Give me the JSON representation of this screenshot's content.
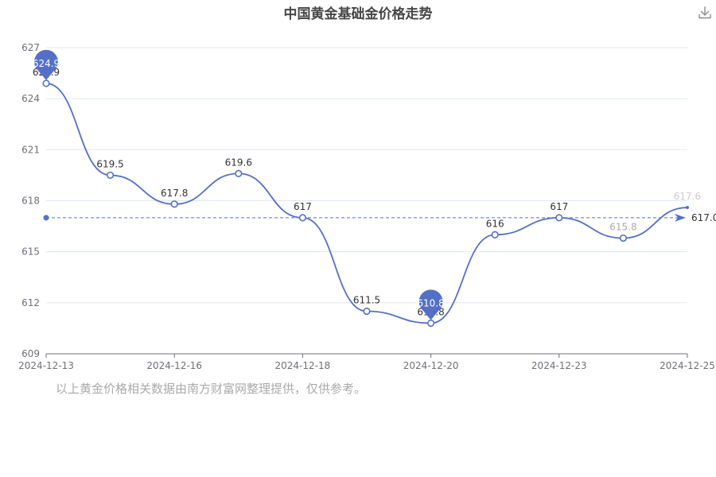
{
  "title": "中国黄金基础金价格走势",
  "footnote": "以上黄金价格相关数据由南方财富网整理提供，仅供参考。",
  "icons": {
    "download": "download-icon"
  },
  "colors": {
    "series": "#5470c6",
    "axis": "#6e7079",
    "grid": "#e0e6f1",
    "title": "#464646",
    "footnote": "#a9a9a9"
  },
  "chart_data": {
    "type": "line",
    "title": "中国黄金基础金价格走势",
    "smooth": true,
    "x_tick_labels": [
      "2024-12-13",
      "2024-12-16",
      "2024-12-18",
      "2024-12-20",
      "2024-12-23",
      "2024-12-25"
    ],
    "y_ticks": [
      609,
      612,
      615,
      618,
      621,
      624,
      627
    ],
    "ylim": [
      609,
      627
    ],
    "grid": "horizontal",
    "series": [
      {
        "values": [
          624.9,
          619.5,
          617.8,
          619.6,
          617.0,
          611.5,
          610.8,
          616.0,
          617.0,
          615.8,
          617.6
        ],
        "labels": [
          "624.9",
          "619.5",
          "617.8",
          "619.6",
          "617",
          "611.5",
          "610.8",
          "616",
          "617",
          "615.8",
          "617.6"
        ]
      }
    ],
    "mark_points": [
      {
        "type": "max",
        "value": 624.9,
        "label": "624.9",
        "index": 0
      },
      {
        "type": "min",
        "value": 610.8,
        "label": "610.8",
        "index": 6
      }
    ],
    "mark_line": {
      "type": "average",
      "value": 617.0,
      "label": "617.0"
    }
  }
}
